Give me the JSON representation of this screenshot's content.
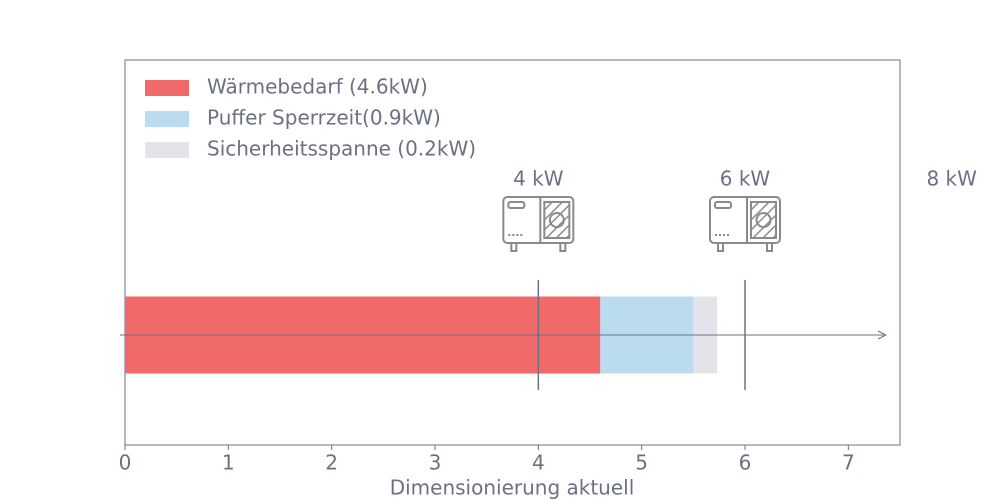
{
  "chart_data": {
    "type": "bar",
    "orientation": "horizontal",
    "stacked": true,
    "xlabel": "Dimensionierung aktuell",
    "categories": [
      null
    ],
    "series": [
      {
        "name": "Wärmebedarf (4.6kW)",
        "color": "#f06a6a",
        "values": [
          4.6
        ]
      },
      {
        "name": "Puffer Sperrzeit(0.9kW)",
        "color": "#badcee",
        "values": [
          0.9
        ]
      },
      {
        "name": "Sicherheitsspanne (0.2kW)",
        "color": "#e3e4ea",
        "values": [
          0.23
        ]
      }
    ],
    "xlim": [
      0,
      7.5
    ],
    "xticks": [
      0,
      1,
      2,
      3,
      4,
      5,
      6,
      7
    ],
    "legend": "upper left",
    "markers": [
      {
        "value": 4,
        "label": "4 kW",
        "line": true
      },
      {
        "value": 6,
        "label": "6 kW",
        "line": true
      },
      {
        "value": 8,
        "label": "8 kW",
        "line": false
      }
    ]
  }
}
